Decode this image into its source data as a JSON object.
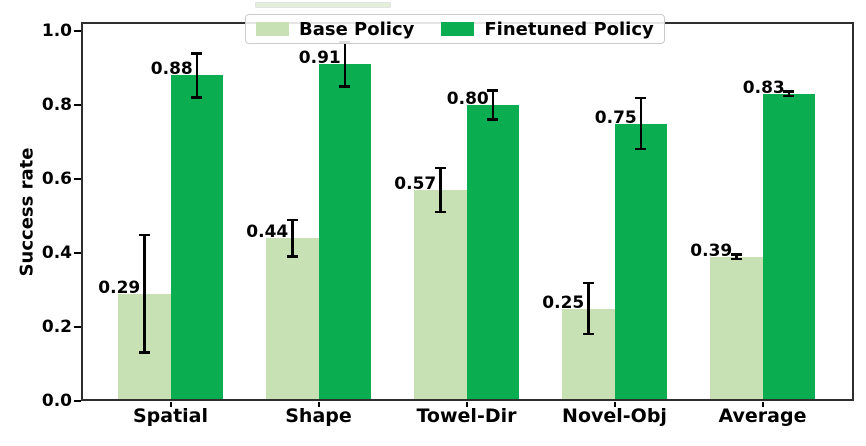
{
  "chart_data": {
    "type": "bar",
    "title": "",
    "xlabel": "",
    "ylabel": "Success rate",
    "categories": [
      "Spatial",
      "Shape",
      "Towel-Dir",
      "Novel-Obj",
      "Average"
    ],
    "series": [
      {
        "name": "Base Policy",
        "color": "#c7e0b4",
        "values": [
          0.29,
          0.44,
          0.57,
          0.25,
          0.39
        ],
        "errors": [
          0.16,
          0.05,
          0.06,
          0.07,
          0.007
        ],
        "labels": [
          "0.29",
          "0.44",
          "0.57",
          "0.25",
          "0.39"
        ]
      },
      {
        "name": "Finetuned Policy",
        "color": "#0aae50",
        "values": [
          0.88,
          0.91,
          0.8,
          0.75,
          0.83
        ],
        "errors": [
          0.06,
          0.06,
          0.04,
          0.07,
          0.007
        ],
        "labels": [
          "0.88",
          "0.91",
          "0.80",
          "0.75",
          "0.83"
        ]
      }
    ],
    "yticks": [
      0.0,
      0.2,
      0.4,
      0.6,
      0.8,
      1.0
    ],
    "ytick_labels": [
      "0.0",
      "0.2",
      "0.4",
      "0.6",
      "0.8",
      "1.0"
    ],
    "ylim": [
      0,
      1.024
    ],
    "grid": false,
    "legend_position": "upper center",
    "error_bar_color": "#000000",
    "spine_color": "#2e2e2e",
    "background_color": "#ffffff"
  }
}
